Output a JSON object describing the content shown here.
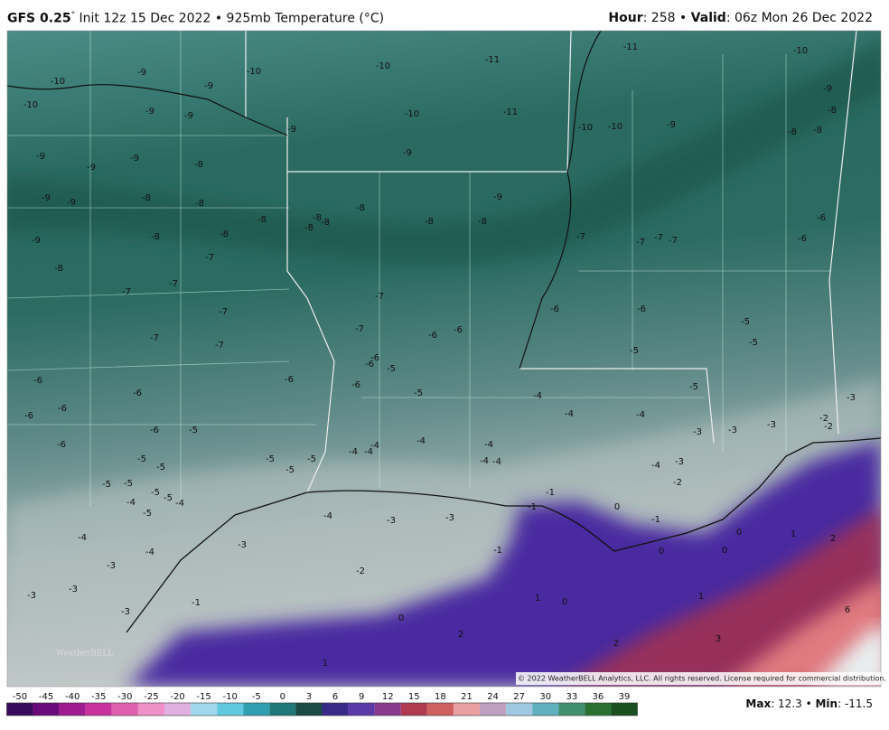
{
  "header": {
    "model": "GFS 0.25",
    "degree": "°",
    "title": "Init 12z 15 Dec 2022 • 925mb Temperature (°C)",
    "hour_label": "Hour",
    "hour_text": ": 258 • ",
    "valid_label": "Valid",
    "valid_text": ": 06z Mon 26 Dec 2022"
  },
  "map": {
    "labels": [
      -10,
      -10,
      -9,
      -9,
      -10,
      -10,
      -11,
      -11,
      -10,
      -9,
      -8,
      -9,
      -9,
      -10,
      -11,
      -10,
      -10,
      -9,
      -8,
      -8,
      -9,
      -9,
      -9,
      -9,
      -9,
      -8,
      -9,
      -9,
      -8,
      -8,
      -8,
      -8,
      -8,
      -8,
      -8,
      -8,
      -8,
      -9,
      -6,
      -9,
      -8,
      -8,
      -7,
      -7,
      -7,
      -7,
      -6,
      -8,
      -7,
      -7,
      -7,
      -7,
      -6,
      -6,
      -7,
      -5,
      -7,
      -6,
      -6,
      -7,
      -7,
      -5,
      -5,
      -6,
      -6,
      -5,
      -6,
      -6,
      -6,
      -5,
      -6,
      -5,
      -4,
      -3,
      -6,
      -4,
      -4,
      -6,
      -6,
      -5,
      -3,
      -3,
      -3,
      -2,
      -2,
      -6,
      -4,
      -4,
      -4,
      -4,
      -4,
      -4,
      -4,
      -5,
      -5,
      -5,
      -5,
      -5,
      -4,
      -3,
      -2,
      -5,
      -5,
      -5,
      -5,
      -4,
      -4,
      -5,
      -1,
      -1,
      0,
      -4,
      -3,
      -3,
      -1,
      0,
      -4,
      -3,
      -1,
      0,
      0,
      1,
      2,
      -4,
      -3,
      -2,
      -3,
      -3,
      -1,
      1,
      0,
      1,
      6,
      -3,
      0,
      2,
      2,
      3,
      1
    ],
    "copyright": "© 2022 WeatherBELL Analytics, LLC. All rights reserved. License required for commercial distribution.",
    "logo": "WeatherBELL"
  },
  "colorbar": {
    "ticks": [
      -50,
      -45,
      -40,
      -35,
      -30,
      -25,
      -20,
      -15,
      -10,
      -5,
      0,
      3,
      6,
      9,
      12,
      15,
      18,
      21,
      24,
      27,
      30,
      33,
      36,
      39
    ]
  },
  "footer": {
    "max_label": "Max",
    "max_text": ": 12.3 • ",
    "min_label": "Min",
    "min_text": ": -11.5"
  }
}
